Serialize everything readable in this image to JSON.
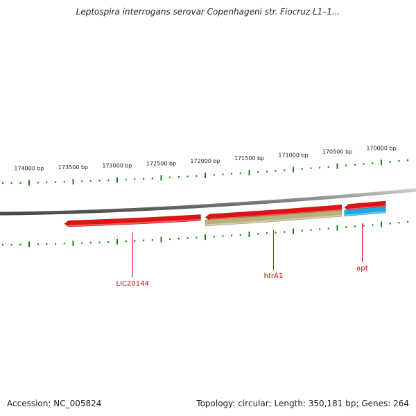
{
  "title": "Leptospira interrogans serovar Copenhageni str. Fiocruz L1–1...",
  "accession_label": "Accession: NC_005824",
  "summary_label": "Topology: circular; Length: 350,181 bp; Genes: 264",
  "colors": {
    "backbone": "#7a7a7a",
    "tick": "#1e7a1e",
    "gene_label": "#cc0000",
    "gene_red": "#e31212",
    "gene_olive": "#b8b27a",
    "gene_blue": "#1aa8e0"
  },
  "tick_labels": [
    {
      "bp": 174000,
      "text": "174000 bp"
    },
    {
      "bp": 173500,
      "text": "173500 bp"
    },
    {
      "bp": 173000,
      "text": "173000 bp"
    },
    {
      "bp": 172500,
      "text": "172500 bp"
    },
    {
      "bp": 172000,
      "text": "172000 bp"
    },
    {
      "bp": 171500,
      "text": "171500 bp"
    },
    {
      "bp": 171000,
      "text": "171000 bp"
    },
    {
      "bp": 170500,
      "text": "170500 bp"
    },
    {
      "bp": 170000,
      "text": "170000 bp"
    }
  ],
  "genes": [
    {
      "name": "LIC20144",
      "label": "LIC20144",
      "color": "gene_red",
      "strand": "-",
      "track": "outer",
      "start": 172050,
      "end": 173600
    },
    {
      "name": "htrA1-red",
      "label": "",
      "color": "gene_red",
      "strand": "-",
      "track": "outer",
      "start": 170450,
      "end": 172000
    },
    {
      "name": "apt-red",
      "label": "",
      "color": "gene_red",
      "strand": "-",
      "track": "outer",
      "start": 169950,
      "end": 170420
    },
    {
      "name": "htrA1",
      "label": "htrA1",
      "color": "gene_olive",
      "strand": "none",
      "track": "inner",
      "start": 170450,
      "end": 172000
    },
    {
      "name": "apt",
      "label": "apt",
      "color": "gene_blue",
      "strand": "none",
      "track": "inner",
      "start": 169950,
      "end": 170420
    }
  ]
}
